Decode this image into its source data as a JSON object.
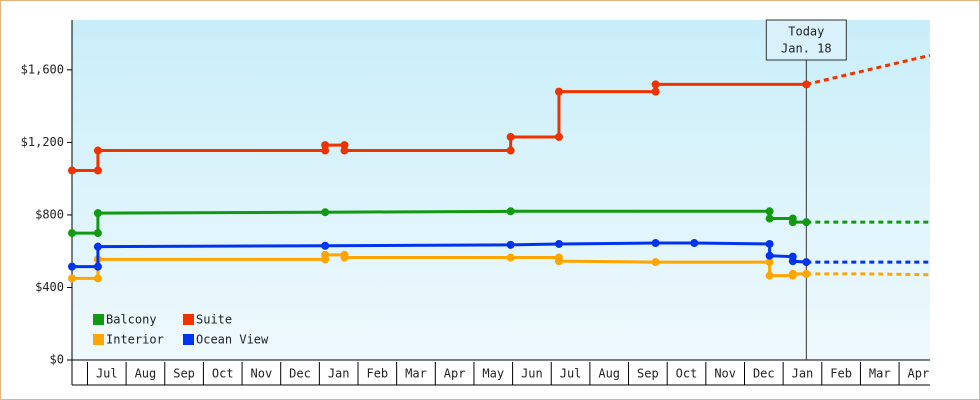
{
  "chart_data": {
    "type": "line",
    "xlim": [
      0,
      22.2
    ],
    "ylim": [
      0,
      1875
    ],
    "xticks": [
      {
        "value": 0.9,
        "label": "Jul"
      },
      {
        "value": 1.9,
        "label": "Aug"
      },
      {
        "value": 2.9,
        "label": "Sep"
      },
      {
        "value": 3.9,
        "label": "Oct"
      },
      {
        "value": 4.9,
        "label": "Nov"
      },
      {
        "value": 5.9,
        "label": "Dec"
      },
      {
        "value": 6.9,
        "label": "Jan"
      },
      {
        "value": 7.9,
        "label": "Feb"
      },
      {
        "value": 8.9,
        "label": "Mar"
      },
      {
        "value": 9.9,
        "label": "Apr"
      },
      {
        "value": 10.9,
        "label": "May"
      },
      {
        "value": 11.9,
        "label": "Jun"
      },
      {
        "value": 12.9,
        "label": "Jul"
      },
      {
        "value": 13.9,
        "label": "Aug"
      },
      {
        "value": 14.9,
        "label": "Sep"
      },
      {
        "value": 15.9,
        "label": "Oct"
      },
      {
        "value": 16.9,
        "label": "Nov"
      },
      {
        "value": 17.9,
        "label": "Dec"
      },
      {
        "value": 18.9,
        "label": "Jan"
      },
      {
        "value": 19.9,
        "label": "Feb"
      },
      {
        "value": 20.9,
        "label": "Mar"
      },
      {
        "value": 21.9,
        "label": "Apr"
      }
    ],
    "yticks": [
      {
        "value": 0,
        "label": "$0"
      },
      {
        "value": 400,
        "label": "$400"
      },
      {
        "value": 800,
        "label": "$800"
      },
      {
        "value": 1200,
        "label": "$1,200"
      },
      {
        "value": 1600,
        "label": "$1,600"
      }
    ],
    "grid": false,
    "legend": "lower left",
    "annotation": {
      "x": 19.0,
      "lines": [
        "Today",
        "Jan. 18"
      ]
    },
    "series": [
      {
        "name": "Balcony",
        "color": "#119911",
        "x": [
          0,
          0.67,
          0.67,
          6.55,
          11.35,
          18.05,
          18.05,
          18.65,
          18.65,
          19.0
        ],
        "values": [
          700,
          700,
          810,
          815,
          820,
          820,
          780,
          780,
          760,
          760
        ],
        "forecast_x": [
          19.0,
          22.2
        ],
        "forecast_values": [
          760,
          760
        ]
      },
      {
        "name": "Suite",
        "color": "#ee3300",
        "x": [
          0,
          0.67,
          0.67,
          6.55,
          6.55,
          7.05,
          7.05,
          11.35,
          11.35,
          12.6,
          12.6,
          15.1,
          15.1,
          19.0
        ],
        "values": [
          1045,
          1045,
          1155,
          1155,
          1185,
          1185,
          1155,
          1155,
          1230,
          1230,
          1480,
          1480,
          1520,
          1520
        ],
        "forecast_x": [
          19.0,
          22.2
        ],
        "forecast_values": [
          1520,
          1680
        ]
      },
      {
        "name": "Interior",
        "color": "#ffa500",
        "x": [
          0,
          0.67,
          0.67,
          6.55,
          6.55,
          7.05,
          7.05,
          11.35,
          12.6,
          12.6,
          15.1,
          18.05,
          18.05,
          18.65,
          18.65,
          19.0
        ],
        "values": [
          450,
          450,
          555,
          555,
          580,
          580,
          565,
          565,
          565,
          545,
          540,
          540,
          465,
          465,
          475,
          475
        ],
        "forecast_x": [
          19.0,
          20.5,
          22.2
        ],
        "forecast_values": [
          475,
          475,
          470
        ]
      },
      {
        "name": "Ocean View",
        "color": "#0033ee",
        "x": [
          0,
          0.67,
          0.67,
          6.55,
          11.35,
          12.6,
          15.1,
          16.1,
          18.05,
          18.05,
          18.65,
          18.65,
          19.0
        ],
        "values": [
          515,
          515,
          625,
          630,
          635,
          640,
          645,
          645,
          640,
          575,
          570,
          545,
          540
        ],
        "forecast_x": [
          19.0,
          22.2
        ],
        "forecast_values": [
          540,
          540
        ]
      }
    ]
  }
}
